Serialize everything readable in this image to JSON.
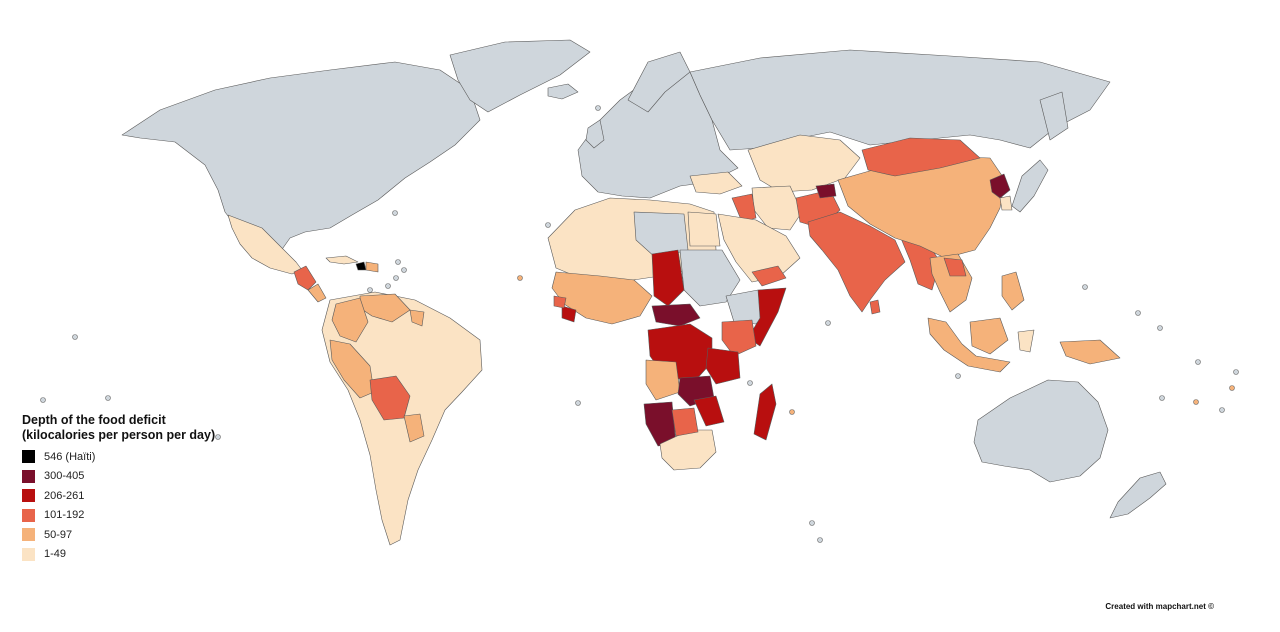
{
  "legend": {
    "title": "Depth of the food deficit (kilocalories per person per day)",
    "items": [
      {
        "label": "546 (Haïti)",
        "color": "#000000"
      },
      {
        "label": "300-405",
        "color": "#7a0f2b"
      },
      {
        "label": "206-261",
        "color": "#b80f0f"
      },
      {
        "label": "101-192",
        "color": "#e8644a"
      },
      {
        "label": "50-97",
        "color": "#f5b27a"
      },
      {
        "label": "1-49",
        "color": "#fbe3c4"
      }
    ]
  },
  "no_data_color": "#cfd6dc",
  "credit": "Created with mapchart.net ©"
}
